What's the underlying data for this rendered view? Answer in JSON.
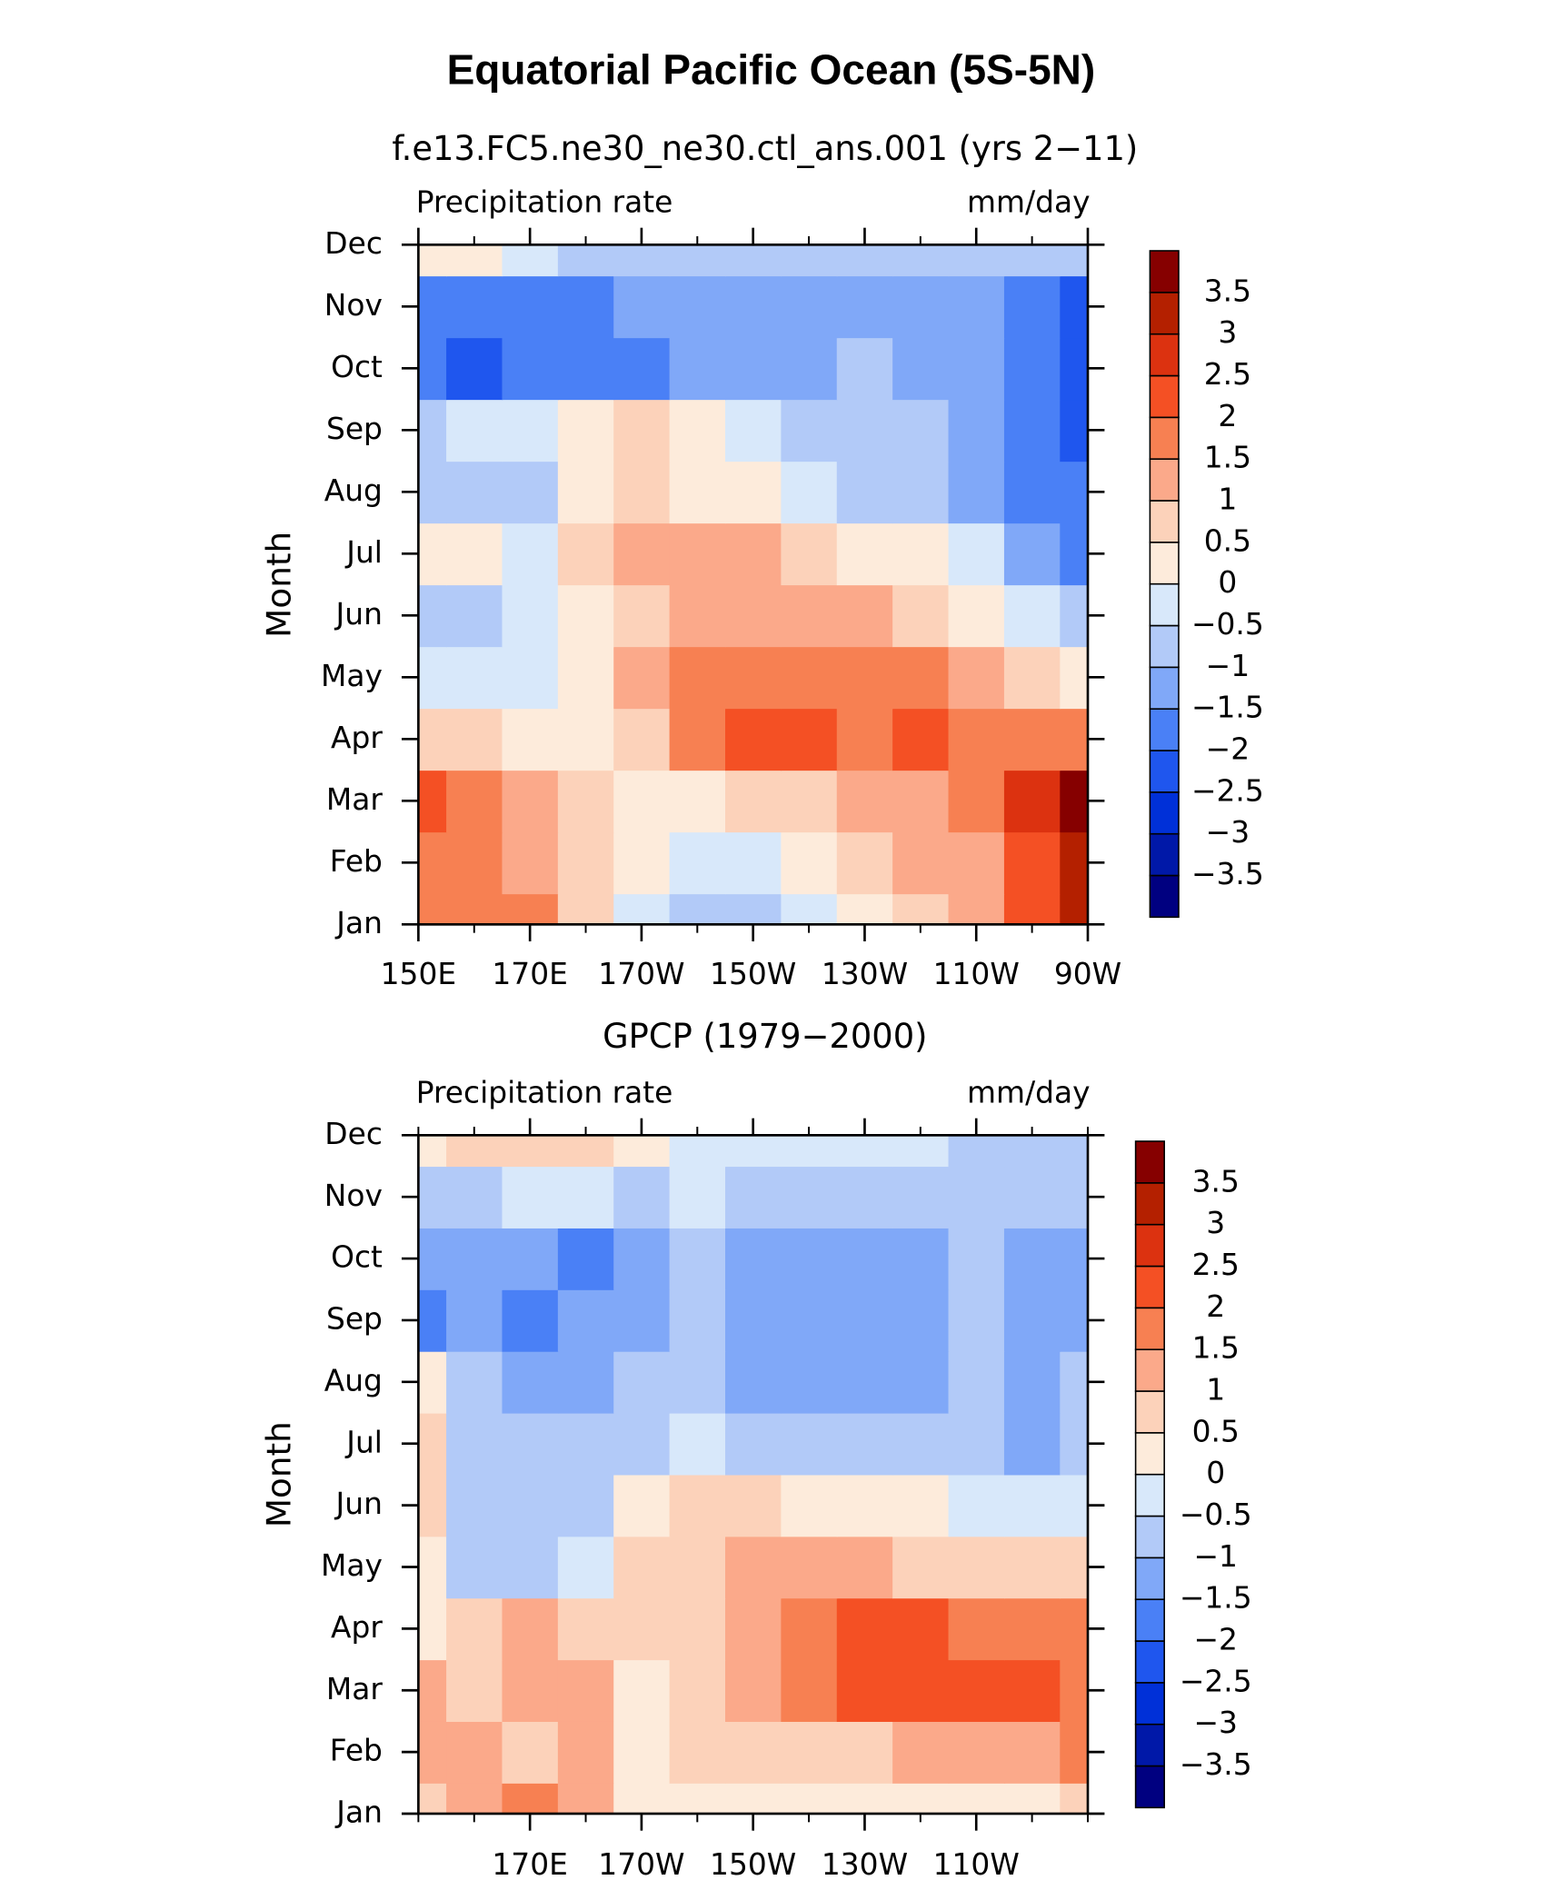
{
  "title": "Equatorial Pacific Ocean (5S-5N)",
  "chart_data": [
    {
      "type": "contour",
      "title": "f.e13.FC5.ne30_ne30.ctl_ans.001 (yrs 2−11)",
      "left_label": "Precipitation rate",
      "right_label": "mm/day",
      "y_label": "Month",
      "x": [
        150,
        160,
        170,
        180,
        190,
        200,
        210,
        220,
        230,
        240,
        250,
        260,
        270
      ],
      "xlim": [
        150,
        270
      ],
      "xticks": [
        {
          "value": 150,
          "label": "150E"
        },
        {
          "value": 170,
          "label": "170E"
        },
        {
          "value": 190,
          "label": "170W"
        },
        {
          "value": 210,
          "label": "150W"
        },
        {
          "value": 230,
          "label": "130W"
        },
        {
          "value": 250,
          "label": "110W"
        },
        {
          "value": 270,
          "label": "90W"
        }
      ],
      "categories": [
        "Jan",
        "Feb",
        "Mar",
        "Apr",
        "May",
        "Jun",
        "Jul",
        "Aug",
        "Sep",
        "Oct",
        "Nov",
        "Dec"
      ],
      "values": [
        [
          1.5,
          1.5,
          1.5,
          0.5,
          -0.2,
          -0.7,
          -0.7,
          -0.3,
          0.3,
          0.8,
          1.2,
          2,
          3
        ],
        [
          1.7,
          1.7,
          1.3,
          0.7,
          0.2,
          -0.3,
          -0.3,
          0.2,
          0.6,
          1.0,
          1.3,
          2.2,
          3.2
        ],
        [
          2.2,
          1.8,
          1.2,
          0.7,
          0.2,
          0.3,
          0.6,
          0.9,
          1.2,
          1.4,
          1.6,
          2.6,
          3.8
        ],
        [
          0.7,
          0.5,
          0.2,
          0.3,
          0.8,
          1.6,
          2.1,
          2.3,
          1.8,
          2.2,
          1.7,
          1.6,
          1.9
        ],
        [
          -0.3,
          -0.2,
          -0.2,
          0.3,
          1.0,
          1.8,
          1.8,
          1.7,
          1.6,
          1.5,
          1.2,
          0.8,
          0.3
        ],
        [
          -0.8,
          -0.6,
          -0.3,
          0.3,
          0.8,
          1.2,
          1.3,
          1.2,
          1.0,
          0.7,
          0.3,
          -0.2,
          -0.8
        ],
        [
          0.2,
          0.1,
          -0.2,
          0.5,
          1.2,
          1.3,
          1.1,
          0.8,
          0.4,
          0.0,
          -0.4,
          -1.2,
          -1.8
        ],
        [
          -0.7,
          -0.6,
          -0.8,
          0.4,
          0.7,
          0.4,
          0.0,
          -0.3,
          -0.6,
          -0.9,
          -1.2,
          -1.6,
          -2
        ],
        [
          -0.6,
          -0.4,
          -0.3,
          0.2,
          0.6,
          0.1,
          -0.4,
          -0.6,
          -0.8,
          -1.0,
          -1.3,
          -1.7,
          -2.2
        ],
        [
          -1.7,
          -2.2,
          -1.8,
          -1.8,
          -1.6,
          -1.3,
          -1.2,
          -1.1,
          -0.8,
          -1.1,
          -1.4,
          -1.8,
          -2.2
        ],
        [
          -1.8,
          -2,
          -2,
          -1.8,
          -1.3,
          -1.2,
          -1.2,
          -1.2,
          -1.2,
          -1.2,
          -1.3,
          -1.7,
          -2.1
        ],
        [
          0.3,
          0.2,
          -0.3,
          -0.6,
          -0.8,
          -0.9,
          -0.8,
          -0.7,
          -0.8,
          -0.7,
          -0.6,
          -0.6,
          -0.7
        ]
      ],
      "levels": [
        {
          "value": -3.5,
          "label": "−3.5"
        },
        {
          "value": -3,
          "label": "−3"
        },
        {
          "value": -2.5,
          "label": "−2.5"
        },
        {
          "value": -2,
          "label": "−2"
        },
        {
          "value": -1.5,
          "label": "−1.5"
        },
        {
          "value": -1,
          "label": "−1"
        },
        {
          "value": -0.5,
          "label": "−0.5"
        },
        0,
        0.5,
        1,
        1.5,
        2,
        2.5,
        3,
        3.5
      ],
      "colors": [
        "#000080",
        "#0018a8",
        "#0030d8",
        "#1f56ee",
        "#4a80f6",
        "#80a8f8",
        "#b2caf8",
        "#d8e8fa",
        "#fdebdb",
        "#fcd2ba",
        "#fba98a",
        "#f78052",
        "#f45024",
        "#dc3210",
        "#b42000",
        "#860000"
      ]
    },
    {
      "type": "contour",
      "title": "GPCP (1979−2000)",
      "left_label": "Precipitation rate",
      "right_label": "mm/day",
      "y_label": "Month",
      "x": [
        150,
        160,
        170,
        180,
        190,
        200,
        210,
        220,
        230,
        240,
        250,
        260,
        270
      ],
      "xlim": [
        150,
        270
      ],
      "xticks": [
        {
          "value": 170,
          "label": "170E"
        },
        {
          "value": 190,
          "label": "170W"
        },
        {
          "value": 210,
          "label": "150W"
        },
        {
          "value": 230,
          "label": "130W"
        },
        {
          "value": 250,
          "label": "110W"
        }
      ],
      "categories": [
        "Jan",
        "Feb",
        "Mar",
        "Apr",
        "May",
        "Jun",
        "Jul",
        "Aug",
        "Sep",
        "Oct",
        "Nov",
        "Dec"
      ],
      "values": [
        [
          0.8,
          1.2,
          1.6,
          1.3,
          0.3,
          0.1,
          0.2,
          0.3,
          0.3,
          0.4,
          0.4,
          0.4,
          0.5
        ],
        [
          1.2,
          1.2,
          0.8,
          1.2,
          0.3,
          0.5,
          0.7,
          0.8,
          0.9,
          1.0,
          1.0,
          1.3,
          1.6
        ],
        [
          1.3,
          0.9,
          1.3,
          1.1,
          0.4,
          0.6,
          1.1,
          1.6,
          2.2,
          2.3,
          2.0,
          2.2,
          1.8
        ],
        [
          0.3,
          0.6,
          1.2,
          0.8,
          0.7,
          0.6,
          1.2,
          1.8,
          2.0,
          2.1,
          1.7,
          1.9,
          1.8
        ],
        [
          0.3,
          -0.8,
          -0.8,
          -0.4,
          0.6,
          0.8,
          1.0,
          1.1,
          1.1,
          0.8,
          0.7,
          0.8,
          0.8
        ],
        [
          0.7,
          -0.7,
          -0.9,
          -0.6,
          0.2,
          0.5,
          0.5,
          0.4,
          0.2,
          0.0,
          -0.2,
          -0.2,
          -0.2
        ],
        [
          0.6,
          -0.7,
          -0.8,
          -0.8,
          -0.6,
          -0.5,
          -0.7,
          -0.8,
          -0.7,
          -0.7,
          -0.8,
          -1.3,
          -0.7
        ],
        [
          0.2,
          -0.8,
          -1.1,
          -1.2,
          -1.0,
          -0.9,
          -1.3,
          -1.3,
          -1.2,
          -1.3,
          -0.8,
          -1.3,
          -1.0
        ],
        [
          -1.6,
          -1.3,
          -1.8,
          -1.4,
          -1.1,
          -1.0,
          -1.4,
          -1.5,
          -1.4,
          -1.4,
          -0.9,
          -1.3,
          -1.2
        ],
        [
          -1.2,
          -1.2,
          -1.4,
          -1.6,
          -1.1,
          -0.8,
          -1.1,
          -1.2,
          -1.2,
          -1.2,
          -0.8,
          -1.2,
          -1.1
        ],
        [
          -0.6,
          -0.9,
          -0.4,
          -0.3,
          -0.6,
          -0.4,
          -0.6,
          -0.7,
          -0.7,
          -0.7,
          -0.7,
          -0.7,
          -0.7
        ],
        [
          0.1,
          0.5,
          0.9,
          0.6,
          0.1,
          -0.3,
          -0.4,
          -0.4,
          -0.5,
          -0.5,
          -0.6,
          -0.6,
          -0.6
        ]
      ],
      "levels": [
        {
          "value": -3.5,
          "label": "−3.5"
        },
        {
          "value": -3,
          "label": "−3"
        },
        {
          "value": -2.5,
          "label": "−2.5"
        },
        {
          "value": -2,
          "label": "−2"
        },
        {
          "value": -1.5,
          "label": "−1.5"
        },
        {
          "value": -1,
          "label": "−1"
        },
        {
          "value": -0.5,
          "label": "−0.5"
        },
        0,
        0.5,
        1,
        1.5,
        2,
        2.5,
        3,
        3.5
      ],
      "colors": [
        "#000080",
        "#0018a8",
        "#0030d8",
        "#1f56ee",
        "#4a80f6",
        "#80a8f8",
        "#b2caf8",
        "#d8e8fa",
        "#fdebdb",
        "#fcd2ba",
        "#fba98a",
        "#f78052",
        "#f45024",
        "#dc3210",
        "#b42000",
        "#860000"
      ]
    }
  ]
}
